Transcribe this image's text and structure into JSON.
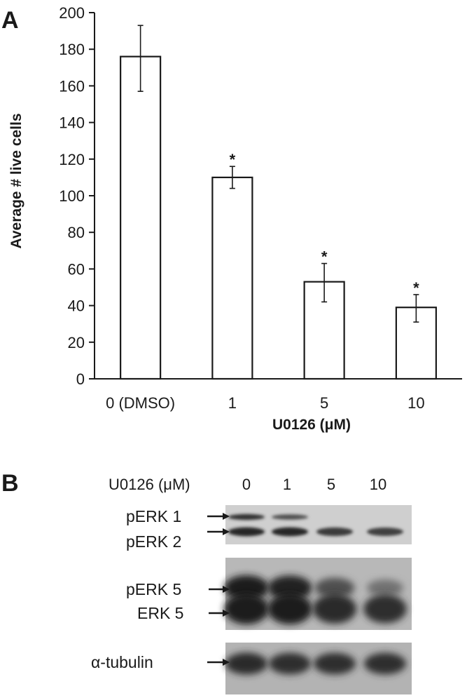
{
  "panel_a": {
    "letter": "A",
    "chart_data": {
      "type": "bar",
      "categories": [
        "0 (DMSO)",
        "1",
        "5",
        "10"
      ],
      "values": [
        176,
        110,
        53,
        39
      ],
      "error_low": [
        157,
        104,
        42,
        31
      ],
      "error_high": [
        193,
        116,
        63,
        46
      ],
      "significance": [
        "",
        "*",
        "*",
        "*"
      ],
      "xlabel": "U0126 (μM)",
      "ylabel": "Average # live cells",
      "ylim": [
        0,
        200
      ],
      "yticks": [
        0,
        20,
        40,
        60,
        80,
        100,
        120,
        140,
        160,
        180,
        200
      ],
      "bar_fill": "#ffffff",
      "bar_stroke": "#1a1a1a"
    }
  },
  "panel_b": {
    "letter": "B",
    "treatment_label": "U0126 (μM)",
    "lanes": [
      "0",
      "1",
      "5",
      "10"
    ],
    "blots": [
      {
        "labels": [
          "pERK 1",
          "pERK 2"
        ],
        "bands": [
          {
            "name": "pERK 1",
            "intensity": [
              0.85,
              0.65,
              0.0,
              0.0
            ]
          },
          {
            "name": "pERK 2",
            "intensity": [
              0.95,
              0.95,
              0.8,
              0.75
            ]
          }
        ]
      },
      {
        "labels": [
          "pERK 5",
          "ERK 5"
        ],
        "bands": [
          {
            "name": "pERK 5",
            "intensity": [
              1.0,
              0.95,
              0.55,
              0.25
            ]
          },
          {
            "name": "ERK 5",
            "intensity": [
              1.0,
              1.0,
              0.9,
              0.85
            ]
          }
        ]
      },
      {
        "labels": [
          "α-tubulin"
        ],
        "bands": [
          {
            "name": "α-tubulin",
            "intensity": [
              0.9,
              0.85,
              0.85,
              0.85
            ]
          }
        ]
      }
    ]
  }
}
